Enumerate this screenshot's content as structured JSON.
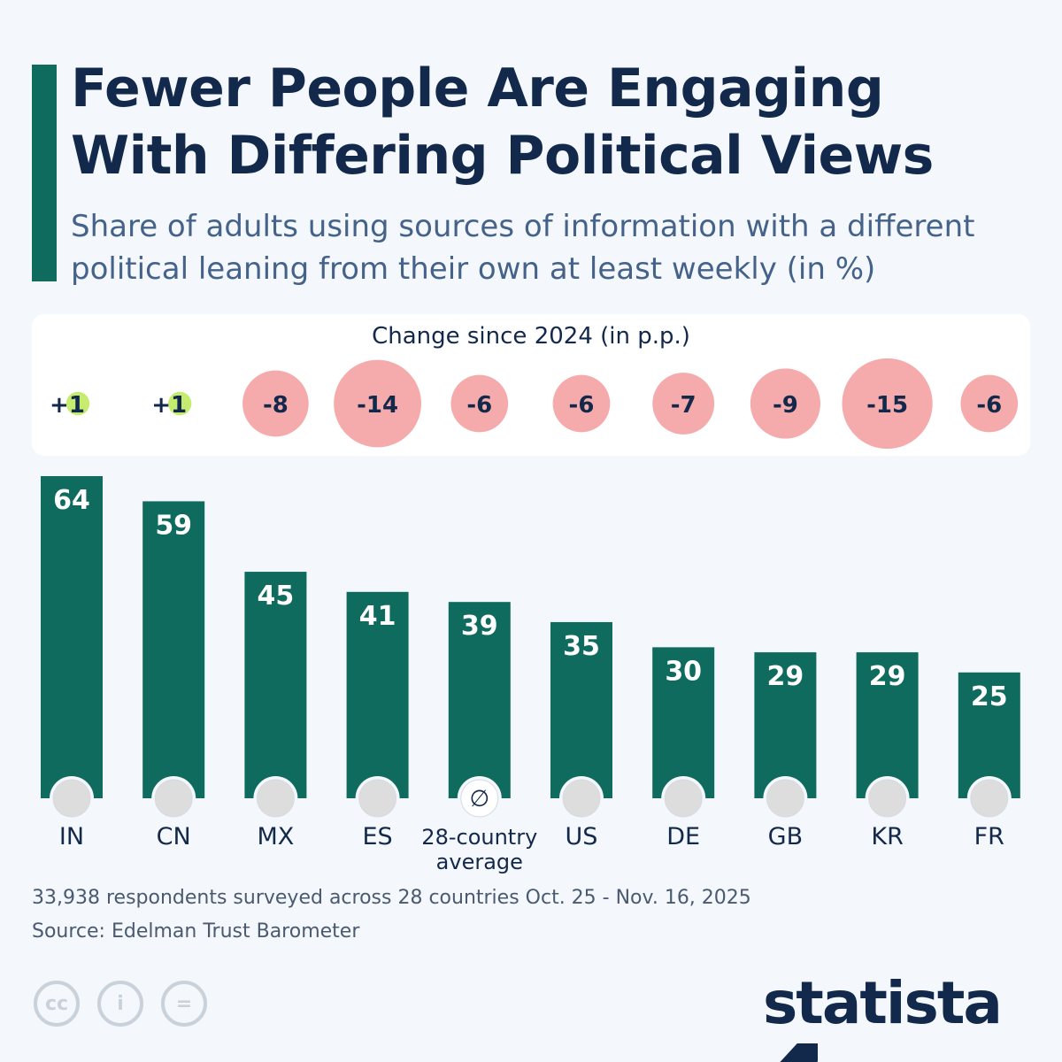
{
  "header": {
    "title_line1": "Fewer People Are Engaging",
    "title_line2": "With Differing Political Views",
    "subtitle": "Share of adults using sources of information with a different political leaning from their own at least weekly (in %)"
  },
  "chart_data": {
    "type": "bar",
    "categories": [
      "IN",
      "CN",
      "MX",
      "ES",
      "28-country average",
      "US",
      "DE",
      "GB",
      "KR",
      "FR"
    ],
    "values": [
      64,
      59,
      45,
      41,
      39,
      35,
      30,
      29,
      29,
      25
    ],
    "change_title": "Change since 2024 (in p.p.)",
    "change": [
      1,
      1,
      -8,
      -14,
      -6,
      -6,
      -7,
      -9,
      -15,
      -6
    ],
    "change_labels": [
      "+1",
      "+1",
      "-8",
      "-14",
      "-6",
      "-6",
      "-7",
      "-9",
      "-15",
      "-6"
    ],
    "ylim": [
      0,
      64
    ],
    "colors": {
      "bar": "#0f6b5e",
      "positive": "#c6ec6f",
      "negative": "#f5abac",
      "text": "#13294b"
    }
  },
  "footer": {
    "note": "33,938 respondents surveyed across 28 countries Oct. 25 - Nov. 16, 2025",
    "source": "Source: Edelman Trust Barometer",
    "brand": "statista"
  }
}
